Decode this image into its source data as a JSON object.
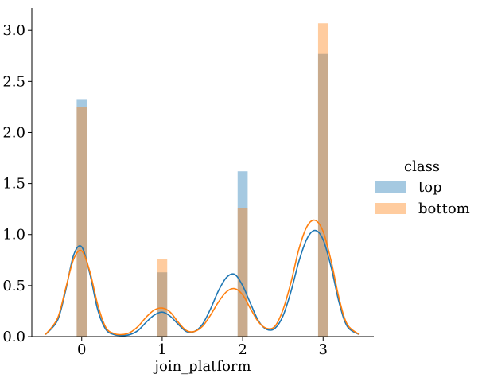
{
  "chart_data": {
    "type": "bar",
    "subtype": "histogram-with-kde",
    "xlabel": "join_platform",
    "ylabel": "",
    "xlim": [
      -0.62,
      3.63
    ],
    "ylim": [
      0,
      3.22
    ],
    "xticks": [
      0,
      1,
      2,
      3
    ],
    "xtick_labels": [
      "0",
      "1",
      "2",
      "3"
    ],
    "yticks": [
      0.0,
      0.5,
      1.0,
      1.5,
      2.0,
      2.5,
      3.0
    ],
    "ytick_labels": [
      "0.0",
      "0.5",
      "1.0",
      "1.5",
      "2.0",
      "2.5",
      "3.0"
    ],
    "grid": false,
    "legend": {
      "title": "class",
      "placement": "right"
    },
    "bar_width": 0.125,
    "categories": [
      0,
      1,
      2,
      3
    ],
    "series": [
      {
        "name": "top",
        "color": "#1f77b4",
        "bar_alpha": 0.4,
        "values": [
          2.32,
          0.63,
          1.62,
          2.77
        ],
        "kde": {
          "x": [
            -0.45,
            -0.3,
            -0.2,
            -0.1,
            0.0,
            0.1,
            0.2,
            0.3,
            0.4,
            0.5,
            0.6,
            0.7,
            0.8,
            0.9,
            1.0,
            1.1,
            1.2,
            1.3,
            1.4,
            1.5,
            1.6,
            1.7,
            1.8,
            1.9,
            2.0,
            2.1,
            2.2,
            2.3,
            2.4,
            2.5,
            2.6,
            2.7,
            2.8,
            2.9,
            3.0,
            3.1,
            3.2,
            3.3,
            3.45
          ],
          "y": [
            0.02,
            0.16,
            0.45,
            0.8,
            0.88,
            0.62,
            0.26,
            0.07,
            0.02,
            0.01,
            0.02,
            0.06,
            0.14,
            0.21,
            0.24,
            0.2,
            0.12,
            0.05,
            0.05,
            0.12,
            0.27,
            0.45,
            0.58,
            0.61,
            0.5,
            0.32,
            0.15,
            0.07,
            0.08,
            0.2,
            0.44,
            0.74,
            0.96,
            1.04,
            0.95,
            0.68,
            0.33,
            0.1,
            0.02
          ]
        }
      },
      {
        "name": "bottom",
        "color": "#ff7f0e",
        "bar_alpha": 0.4,
        "values": [
          2.25,
          0.76,
          1.26,
          3.07
        ],
        "kde": {
          "x": [
            -0.45,
            -0.3,
            -0.2,
            -0.1,
            0.0,
            0.1,
            0.2,
            0.3,
            0.4,
            0.5,
            0.6,
            0.7,
            0.8,
            0.9,
            1.0,
            1.1,
            1.2,
            1.3,
            1.4,
            1.5,
            1.6,
            1.7,
            1.8,
            1.9,
            2.0,
            2.1,
            2.2,
            2.3,
            2.4,
            2.5,
            2.6,
            2.7,
            2.8,
            2.9,
            3.0,
            3.1,
            3.2,
            3.3,
            3.45
          ],
          "y": [
            0.02,
            0.18,
            0.47,
            0.76,
            0.84,
            0.64,
            0.31,
            0.09,
            0.03,
            0.02,
            0.04,
            0.1,
            0.19,
            0.26,
            0.28,
            0.24,
            0.14,
            0.06,
            0.05,
            0.1,
            0.21,
            0.34,
            0.44,
            0.47,
            0.41,
            0.27,
            0.14,
            0.08,
            0.1,
            0.26,
            0.53,
            0.86,
            1.08,
            1.14,
            1.03,
            0.74,
            0.37,
            0.12,
            0.02
          ]
        }
      }
    ]
  }
}
